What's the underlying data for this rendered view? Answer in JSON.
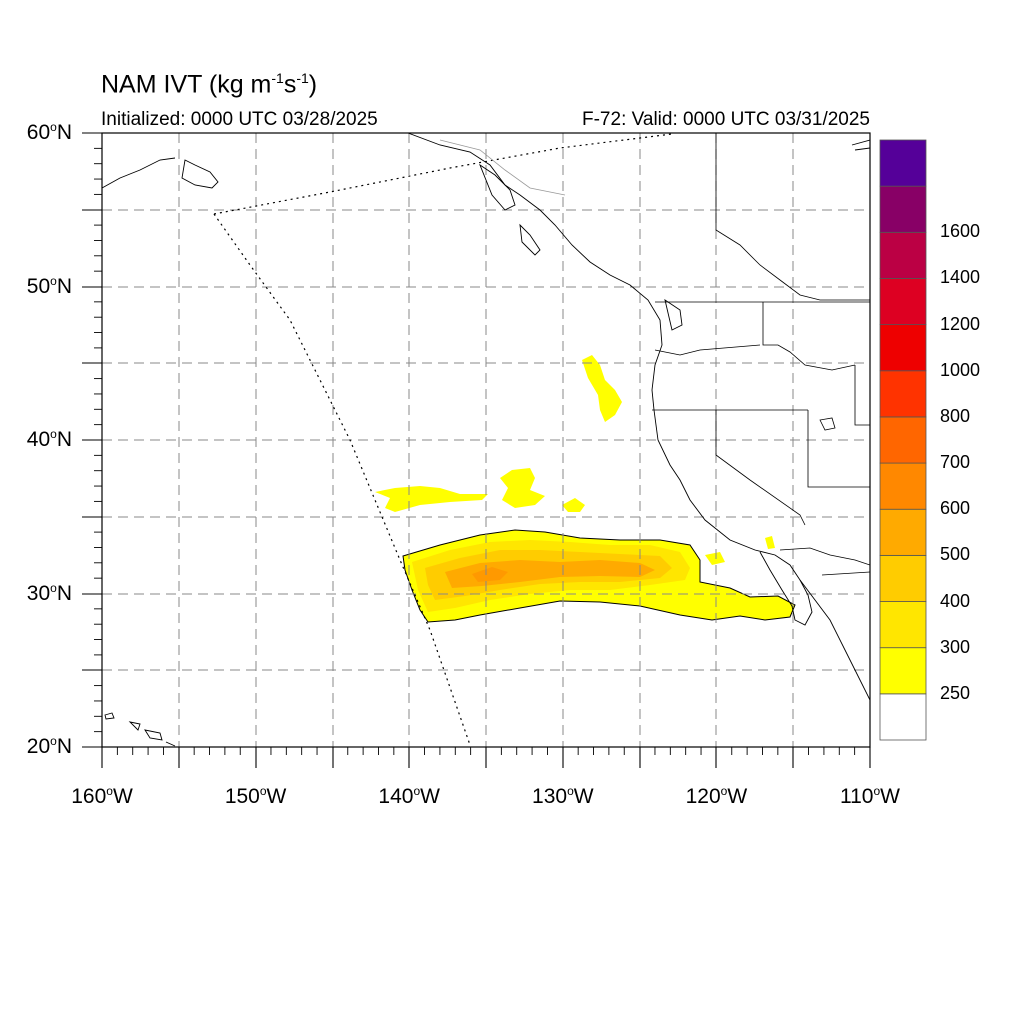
{
  "title": {
    "main": "NAM IVT (kg m",
    "exp1": "-1",
    "mid": "s",
    "exp2": "-1",
    "end": ")"
  },
  "initialized": "Initialized: 0000 UTC 03/28/2025",
  "valid": "F-72: Valid: 0000 UTC 03/31/2025",
  "map": {
    "lon_range": [
      -160,
      -110
    ],
    "lat_range": [
      20,
      60
    ],
    "grid": true,
    "lat_labels": [
      {
        "lat": 60,
        "num": "60",
        "hemi": "N"
      },
      {
        "lat": 50,
        "num": "50",
        "hemi": "N"
      },
      {
        "lat": 40,
        "num": "40",
        "hemi": "N"
      },
      {
        "lat": 30,
        "num": "30",
        "hemi": "N"
      },
      {
        "lat": 20,
        "num": "20",
        "hemi": "N"
      }
    ],
    "lon_labels": [
      {
        "lon": -160,
        "num": "160",
        "hemi": "W"
      },
      {
        "lon": -150,
        "num": "150",
        "hemi": "W"
      },
      {
        "lon": -140,
        "num": "140",
        "hemi": "W"
      },
      {
        "lon": -130,
        "num": "130",
        "hemi": "W"
      },
      {
        "lon": -120,
        "num": "120",
        "hemi": "W"
      },
      {
        "lon": -110,
        "num": "110",
        "hemi": "W"
      }
    ]
  },
  "colorbar": {
    "levels": [
      "250",
      "300",
      "400",
      "500",
      "600",
      "700",
      "800",
      "1000",
      "1200",
      "1400",
      "1600"
    ],
    "colors": [
      "#ffffff",
      "#ffff00",
      "#ffe600",
      "#ffcc00",
      "#ffaa00",
      "#ff8800",
      "#ff6600",
      "#ff3300",
      "#ee0000",
      "#dd0022",
      "#bb0044",
      "#880066",
      "#550099"
    ]
  }
}
